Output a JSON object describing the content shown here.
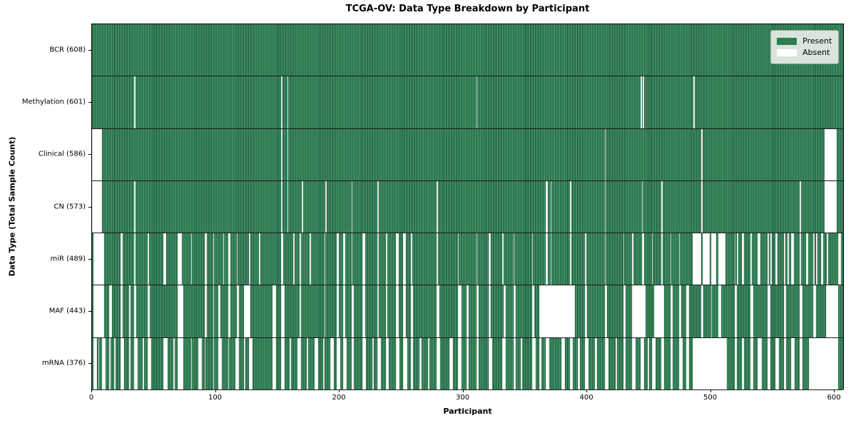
{
  "chart_data": {
    "type": "heatmap",
    "title": "TCGA-OV: Data Type Breakdown by Participant",
    "xlabel": "Participant",
    "ylabel": "Data Type (Total Sample Count)",
    "x_ticks": [
      0,
      100,
      200,
      300,
      400,
      500,
      600
    ],
    "xlim": [
      0,
      608
    ],
    "n_participants": 608,
    "grid": false,
    "legend_position": "upper right",
    "legend": [
      {
        "label": "Present",
        "color": "#2e7d52"
      },
      {
        "label": "Absent",
        "color": "#ffffff"
      }
    ],
    "cell_states": {
      "present": 1,
      "absent": 0
    },
    "rows": [
      {
        "label": "BCR (608)",
        "data_type": "BCR",
        "present_count": 608,
        "absent_ranges": []
      },
      {
        "label": "Methylation (601)",
        "data_type": "Methylation",
        "present_count": 601,
        "absent_ranges": [
          [
            34,
            34
          ],
          [
            153,
            153
          ],
          [
            158,
            158
          ],
          [
            311,
            311
          ],
          [
            444,
            444
          ],
          [
            446,
            446
          ],
          [
            487,
            487
          ]
        ]
      },
      {
        "label": "Clinical (586)",
        "data_type": "Clinical",
        "present_count": 586,
        "absent_ranges": [
          [
            0,
            7
          ],
          [
            153,
            153
          ],
          [
            158,
            158
          ],
          [
            415,
            415
          ],
          [
            493,
            493
          ],
          [
            593,
            602
          ]
        ]
      },
      {
        "label": "CN (573)",
        "data_type": "CN",
        "present_count": 573,
        "absent_ranges": [
          [
            0,
            7
          ],
          [
            34,
            34
          ],
          [
            153,
            153
          ],
          [
            158,
            158
          ],
          [
            170,
            170
          ],
          [
            189,
            189
          ],
          [
            210,
            210
          ],
          [
            231,
            231
          ],
          [
            279,
            279
          ],
          [
            367,
            368
          ],
          [
            371,
            371
          ],
          [
            387,
            387
          ],
          [
            415,
            415
          ],
          [
            445,
            445
          ],
          [
            461,
            461
          ],
          [
            493,
            493
          ],
          [
            573,
            573
          ],
          [
            593,
            602
          ]
        ]
      },
      {
        "label": "miR (489)",
        "data_type": "miR",
        "present_count": 489,
        "absent_ranges": [
          [
            1,
            9
          ],
          [
            23,
            24
          ],
          [
            34,
            34
          ],
          [
            45,
            45
          ],
          [
            58,
            59
          ],
          [
            69,
            72
          ],
          [
            80,
            80
          ],
          [
            91,
            92
          ],
          [
            98,
            98
          ],
          [
            106,
            106
          ],
          [
            110,
            111
          ],
          [
            117,
            117
          ],
          [
            127,
            127
          ],
          [
            135,
            135
          ],
          [
            153,
            154
          ],
          [
            163,
            163
          ],
          [
            168,
            168
          ],
          [
            176,
            176
          ],
          [
            188,
            188
          ],
          [
            198,
            199
          ],
          [
            203,
            204
          ],
          [
            210,
            210
          ],
          [
            219,
            220
          ],
          [
            231,
            231
          ],
          [
            238,
            238
          ],
          [
            246,
            247
          ],
          [
            252,
            253
          ],
          [
            258,
            258
          ],
          [
            279,
            279
          ],
          [
            296,
            296
          ],
          [
            311,
            311
          ],
          [
            321,
            322
          ],
          [
            332,
            332
          ],
          [
            341,
            341
          ],
          [
            356,
            356
          ],
          [
            367,
            368
          ],
          [
            371,
            371
          ],
          [
            387,
            387
          ],
          [
            399,
            399
          ],
          [
            415,
            415
          ],
          [
            430,
            430
          ],
          [
            437,
            437
          ],
          [
            445,
            446
          ],
          [
            453,
            453
          ],
          [
            461,
            461
          ],
          [
            468,
            468
          ],
          [
            475,
            475
          ],
          [
            486,
            492
          ],
          [
            494,
            499
          ],
          [
            501,
            504
          ],
          [
            507,
            512
          ],
          [
            520,
            520
          ],
          [
            522,
            522
          ],
          [
            526,
            527
          ],
          [
            533,
            533
          ],
          [
            539,
            540
          ],
          [
            547,
            547
          ],
          [
            549,
            549
          ],
          [
            553,
            554
          ],
          [
            560,
            560
          ],
          [
            563,
            563
          ],
          [
            566,
            567
          ],
          [
            573,
            573
          ],
          [
            578,
            579
          ],
          [
            584,
            584
          ],
          [
            586,
            586
          ],
          [
            590,
            591
          ],
          [
            595,
            595
          ],
          [
            604,
            605
          ]
        ]
      },
      {
        "label": "MAF (443)",
        "data_type": "MAF",
        "present_count": 443,
        "absent_ranges": [
          [
            1,
            9
          ],
          [
            14,
            15
          ],
          [
            23,
            24
          ],
          [
            30,
            30
          ],
          [
            34,
            35
          ],
          [
            45,
            46
          ],
          [
            69,
            73
          ],
          [
            91,
            92
          ],
          [
            98,
            98
          ],
          [
            102,
            103
          ],
          [
            110,
            111
          ],
          [
            117,
            118
          ],
          [
            123,
            127
          ],
          [
            146,
            148
          ],
          [
            153,
            155
          ],
          [
            168,
            168
          ],
          [
            188,
            188
          ],
          [
            198,
            199
          ],
          [
            203,
            204
          ],
          [
            210,
            211
          ],
          [
            219,
            220
          ],
          [
            231,
            231
          ],
          [
            238,
            238
          ],
          [
            246,
            247
          ],
          [
            252,
            253
          ],
          [
            258,
            259
          ],
          [
            279,
            280
          ],
          [
            296,
            298
          ],
          [
            303,
            304
          ],
          [
            311,
            312
          ],
          [
            321,
            322
          ],
          [
            333,
            334
          ],
          [
            341,
            342
          ],
          [
            356,
            357
          ],
          [
            362,
            390
          ],
          [
            399,
            400
          ],
          [
            415,
            416
          ],
          [
            430,
            431
          ],
          [
            437,
            447
          ],
          [
            455,
            462
          ],
          [
            468,
            469
          ],
          [
            475,
            476
          ],
          [
            481,
            482
          ],
          [
            493,
            494
          ],
          [
            501,
            501
          ],
          [
            507,
            508
          ],
          [
            520,
            521
          ],
          [
            533,
            534
          ],
          [
            547,
            548
          ],
          [
            560,
            561
          ],
          [
            573,
            574
          ],
          [
            584,
            585
          ],
          [
            594,
            603
          ]
        ]
      },
      {
        "label": "mRNA (376)",
        "data_type": "mRNA",
        "present_count": 376,
        "absent_ranges": [
          [
            1,
            3
          ],
          [
            5,
            5
          ],
          [
            8,
            10
          ],
          [
            14,
            14
          ],
          [
            18,
            18
          ],
          [
            23,
            25
          ],
          [
            30,
            30
          ],
          [
            34,
            36
          ],
          [
            41,
            41
          ],
          [
            45,
            47
          ],
          [
            58,
            60
          ],
          [
            66,
            66
          ],
          [
            69,
            73
          ],
          [
            80,
            80
          ],
          [
            86,
            88
          ],
          [
            91,
            91
          ],
          [
            98,
            98
          ],
          [
            102,
            104
          ],
          [
            110,
            110
          ],
          [
            116,
            118
          ],
          [
            123,
            123
          ],
          [
            127,
            129
          ],
          [
            146,
            148
          ],
          [
            153,
            155
          ],
          [
            160,
            160
          ],
          [
            166,
            168
          ],
          [
            174,
            174
          ],
          [
            180,
            182
          ],
          [
            187,
            187
          ],
          [
            193,
            195
          ],
          [
            198,
            200
          ],
          [
            203,
            205
          ],
          [
            210,
            211
          ],
          [
            219,
            221
          ],
          [
            227,
            227
          ],
          [
            231,
            233
          ],
          [
            238,
            239
          ],
          [
            246,
            248
          ],
          [
            252,
            254
          ],
          [
            258,
            259
          ],
          [
            265,
            266
          ],
          [
            272,
            272
          ],
          [
            279,
            281
          ],
          [
            289,
            291
          ],
          [
            296,
            298
          ],
          [
            303,
            304
          ],
          [
            311,
            312
          ],
          [
            321,
            323
          ],
          [
            332,
            334
          ],
          [
            341,
            342
          ],
          [
            347,
            347
          ],
          [
            356,
            358
          ],
          [
            362,
            363
          ],
          [
            367,
            369
          ],
          [
            380,
            382
          ],
          [
            387,
            388
          ],
          [
            393,
            394
          ],
          [
            399,
            401
          ],
          [
            407,
            408
          ],
          [
            415,
            417
          ],
          [
            424,
            424
          ],
          [
            430,
            431
          ],
          [
            437,
            439
          ],
          [
            444,
            446
          ],
          [
            450,
            450
          ],
          [
            453,
            455
          ],
          [
            461,
            462
          ],
          [
            468,
            469
          ],
          [
            475,
            477
          ],
          [
            481,
            482
          ],
          [
            486,
            513
          ],
          [
            520,
            521
          ],
          [
            526,
            527
          ],
          [
            533,
            534
          ],
          [
            539,
            541
          ],
          [
            547,
            548
          ],
          [
            553,
            555
          ],
          [
            560,
            561
          ],
          [
            566,
            568
          ],
          [
            573,
            574
          ],
          [
            580,
            603
          ]
        ]
      }
    ]
  }
}
